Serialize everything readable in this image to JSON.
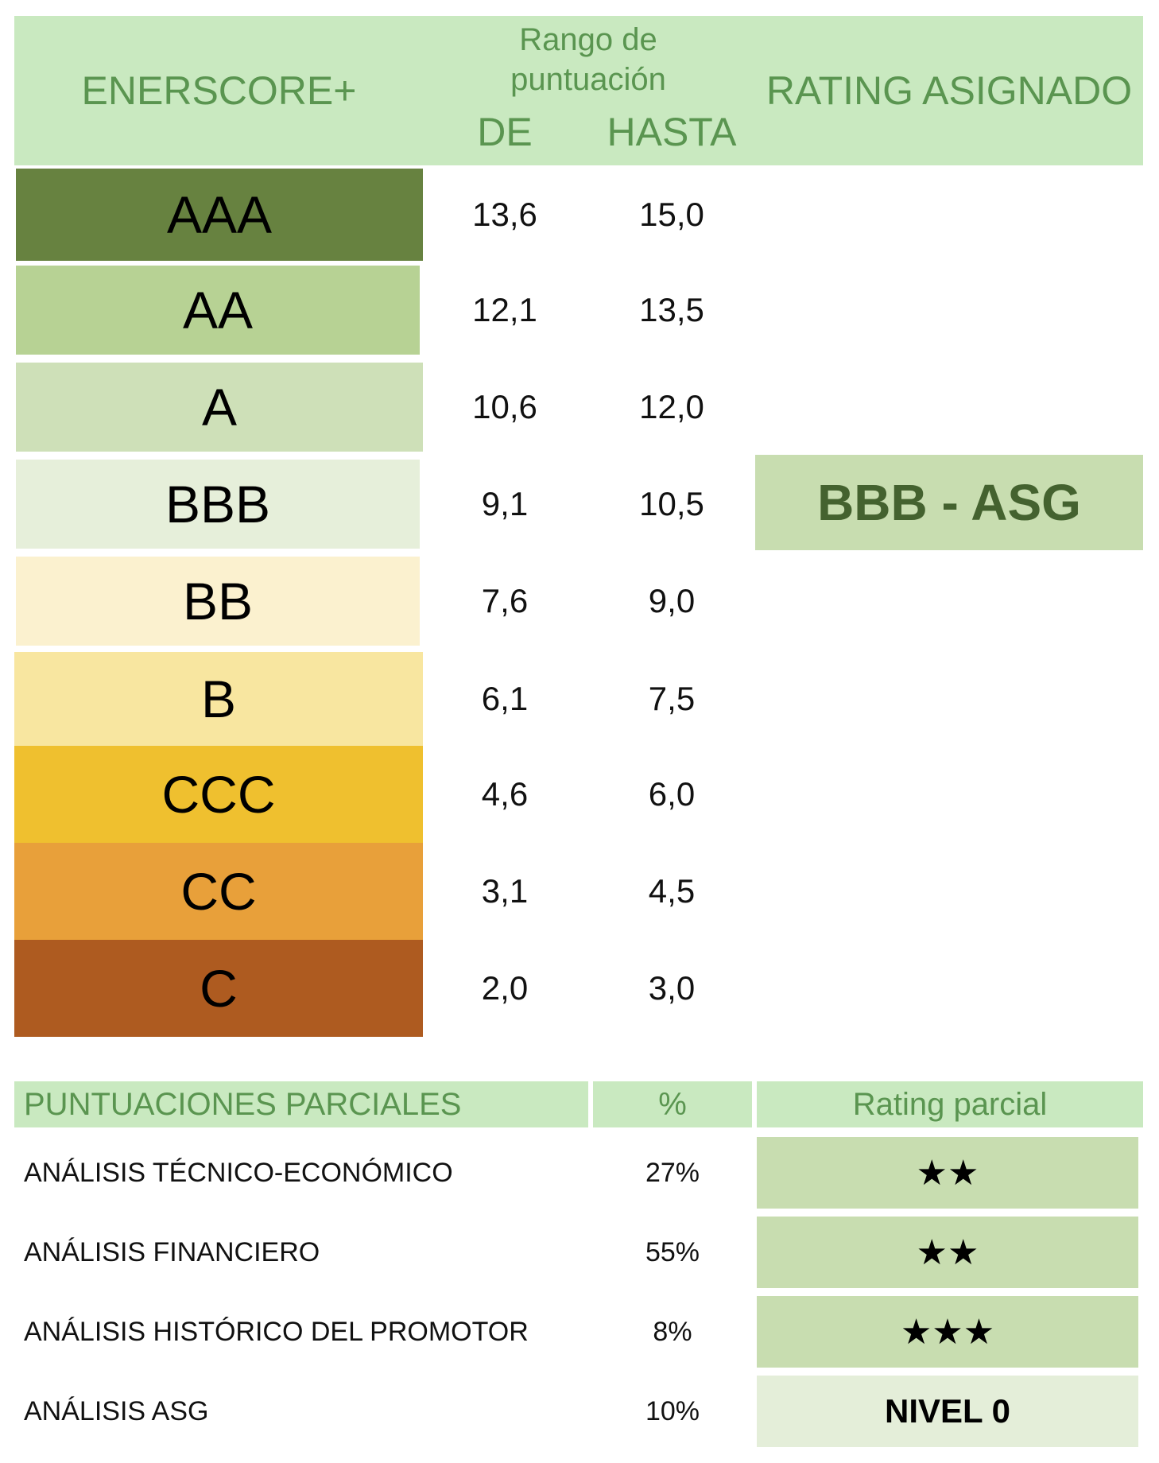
{
  "header": {
    "enerscore": "ENERSCORE+",
    "rango": "Rango de puntuación",
    "de": "DE",
    "hasta": "HASTA",
    "rating_asignado": "RATING ASIGNADO"
  },
  "grades": [
    {
      "label": "AAA",
      "de": "13,6",
      "hasta": "15,0",
      "color": "#678240"
    },
    {
      "label": "AA",
      "de": "12,1",
      "hasta": "13,5",
      "color": "#b7d294"
    },
    {
      "label": "A",
      "de": "10,6",
      "hasta": "12,0",
      "color": "#cee0b8"
    },
    {
      "label": "BBB",
      "de": "9,1",
      "hasta": "10,5",
      "color": "#e6efda"
    },
    {
      "label": "BB",
      "de": "7,6",
      "hasta": "9,0",
      "color": "#fbf1cf"
    },
    {
      "label": "B",
      "de": "6,1",
      "hasta": "7,5",
      "color": "#f8e6a0"
    },
    {
      "label": "CCC",
      "de": "4,6",
      "hasta": "6,0",
      "color": "#efc02f"
    },
    {
      "label": "CC",
      "de": "3,1",
      "hasta": "4,5",
      "color": "#e8a03a"
    },
    {
      "label": "C",
      "de": "2,0",
      "hasta": "3,0",
      "color": "#ae5b20"
    }
  ],
  "assigned_rating": "BBB - ASG",
  "partial": {
    "header_label": "PUNTUACIONES PARCIALES",
    "header_pct": "%",
    "header_rating": "Rating parcial",
    "rows": [
      {
        "label": "ANÁLISIS TÉCNICO-ECONÓMICO",
        "pct": "27%",
        "rating": "★★"
      },
      {
        "label": "ANÁLISIS FINANCIERO",
        "pct": "55%",
        "rating": "★★"
      },
      {
        "label": "ANÁLISIS HISTÓRICO DEL PROMOTOR",
        "pct": "8%",
        "rating": "★★★"
      },
      {
        "label": "ANÁLISIS ASG",
        "pct": "10%",
        "rating": "NIVEL 0"
      }
    ]
  }
}
